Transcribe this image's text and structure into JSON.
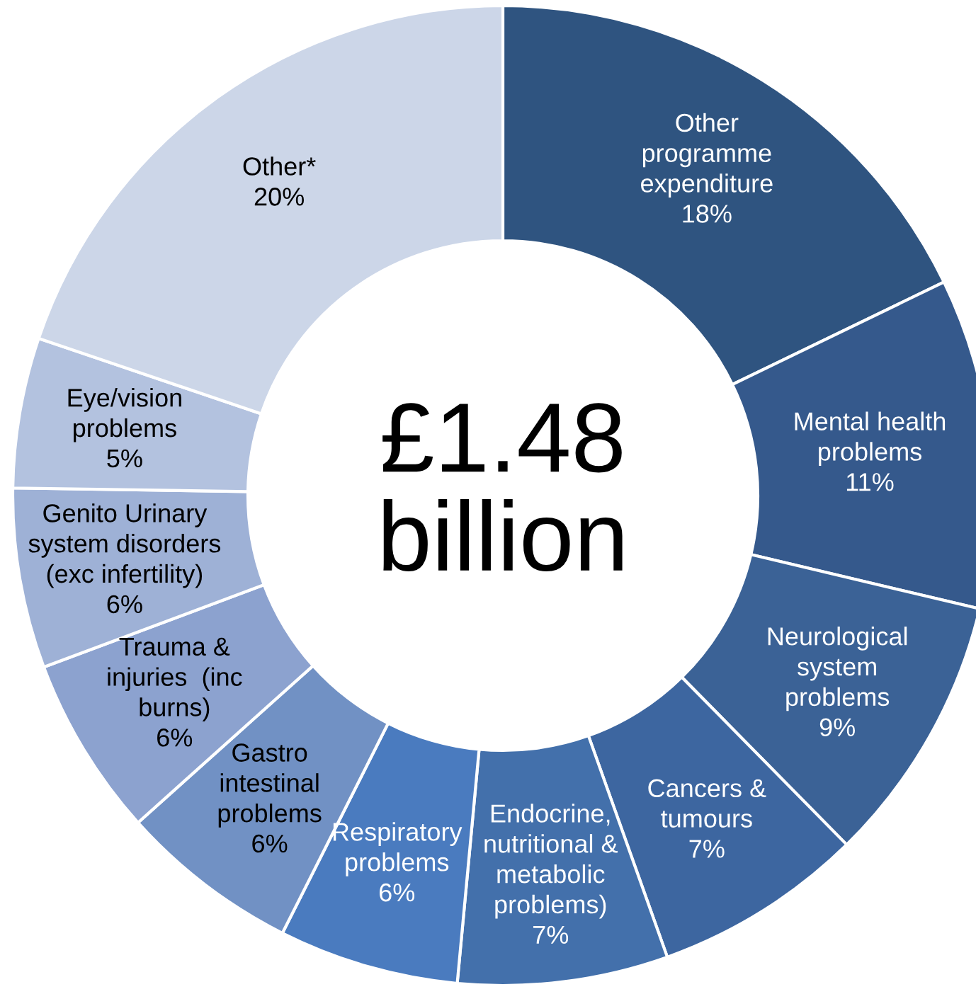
{
  "chart_data": {
    "type": "donut",
    "categories": [
      "Other\nprogramme\nexpenditure",
      "Mental health\nproblems",
      "Neurological\nsystem\nproblems",
      "Cancers &\ntumours",
      "Endocrine,\nnutritional &\nmetabolic\nproblems)",
      "Respiratory\nproblems",
      "Gastro\nintestinal\nproblems",
      "Trauma &\ninjuries  (inc\nburns)",
      "Genito Urinary\nsystem disorders\n(exc infertility)",
      "Eye/vision\nproblems",
      "Other*"
    ],
    "values": [
      18,
      11,
      9,
      7,
      7,
      6,
      6,
      6,
      6,
      5,
      20
    ],
    "value_labels": [
      "18%",
      "11%",
      "9%",
      "7%",
      "7%",
      "6%",
      "6%",
      "6%",
      "6%",
      "5%",
      "20%"
    ],
    "colors": [
      "#2f5480",
      "#35598c",
      "#3b6296",
      "#3d66a0",
      "#4370ab",
      "#4a7bbf",
      "#7191c4",
      "#8ca2cf",
      "#9eb1d6",
      "#b3c2df",
      "#ccd6e8"
    ],
    "annotations": [
      "£1.48\nbillion"
    ]
  }
}
